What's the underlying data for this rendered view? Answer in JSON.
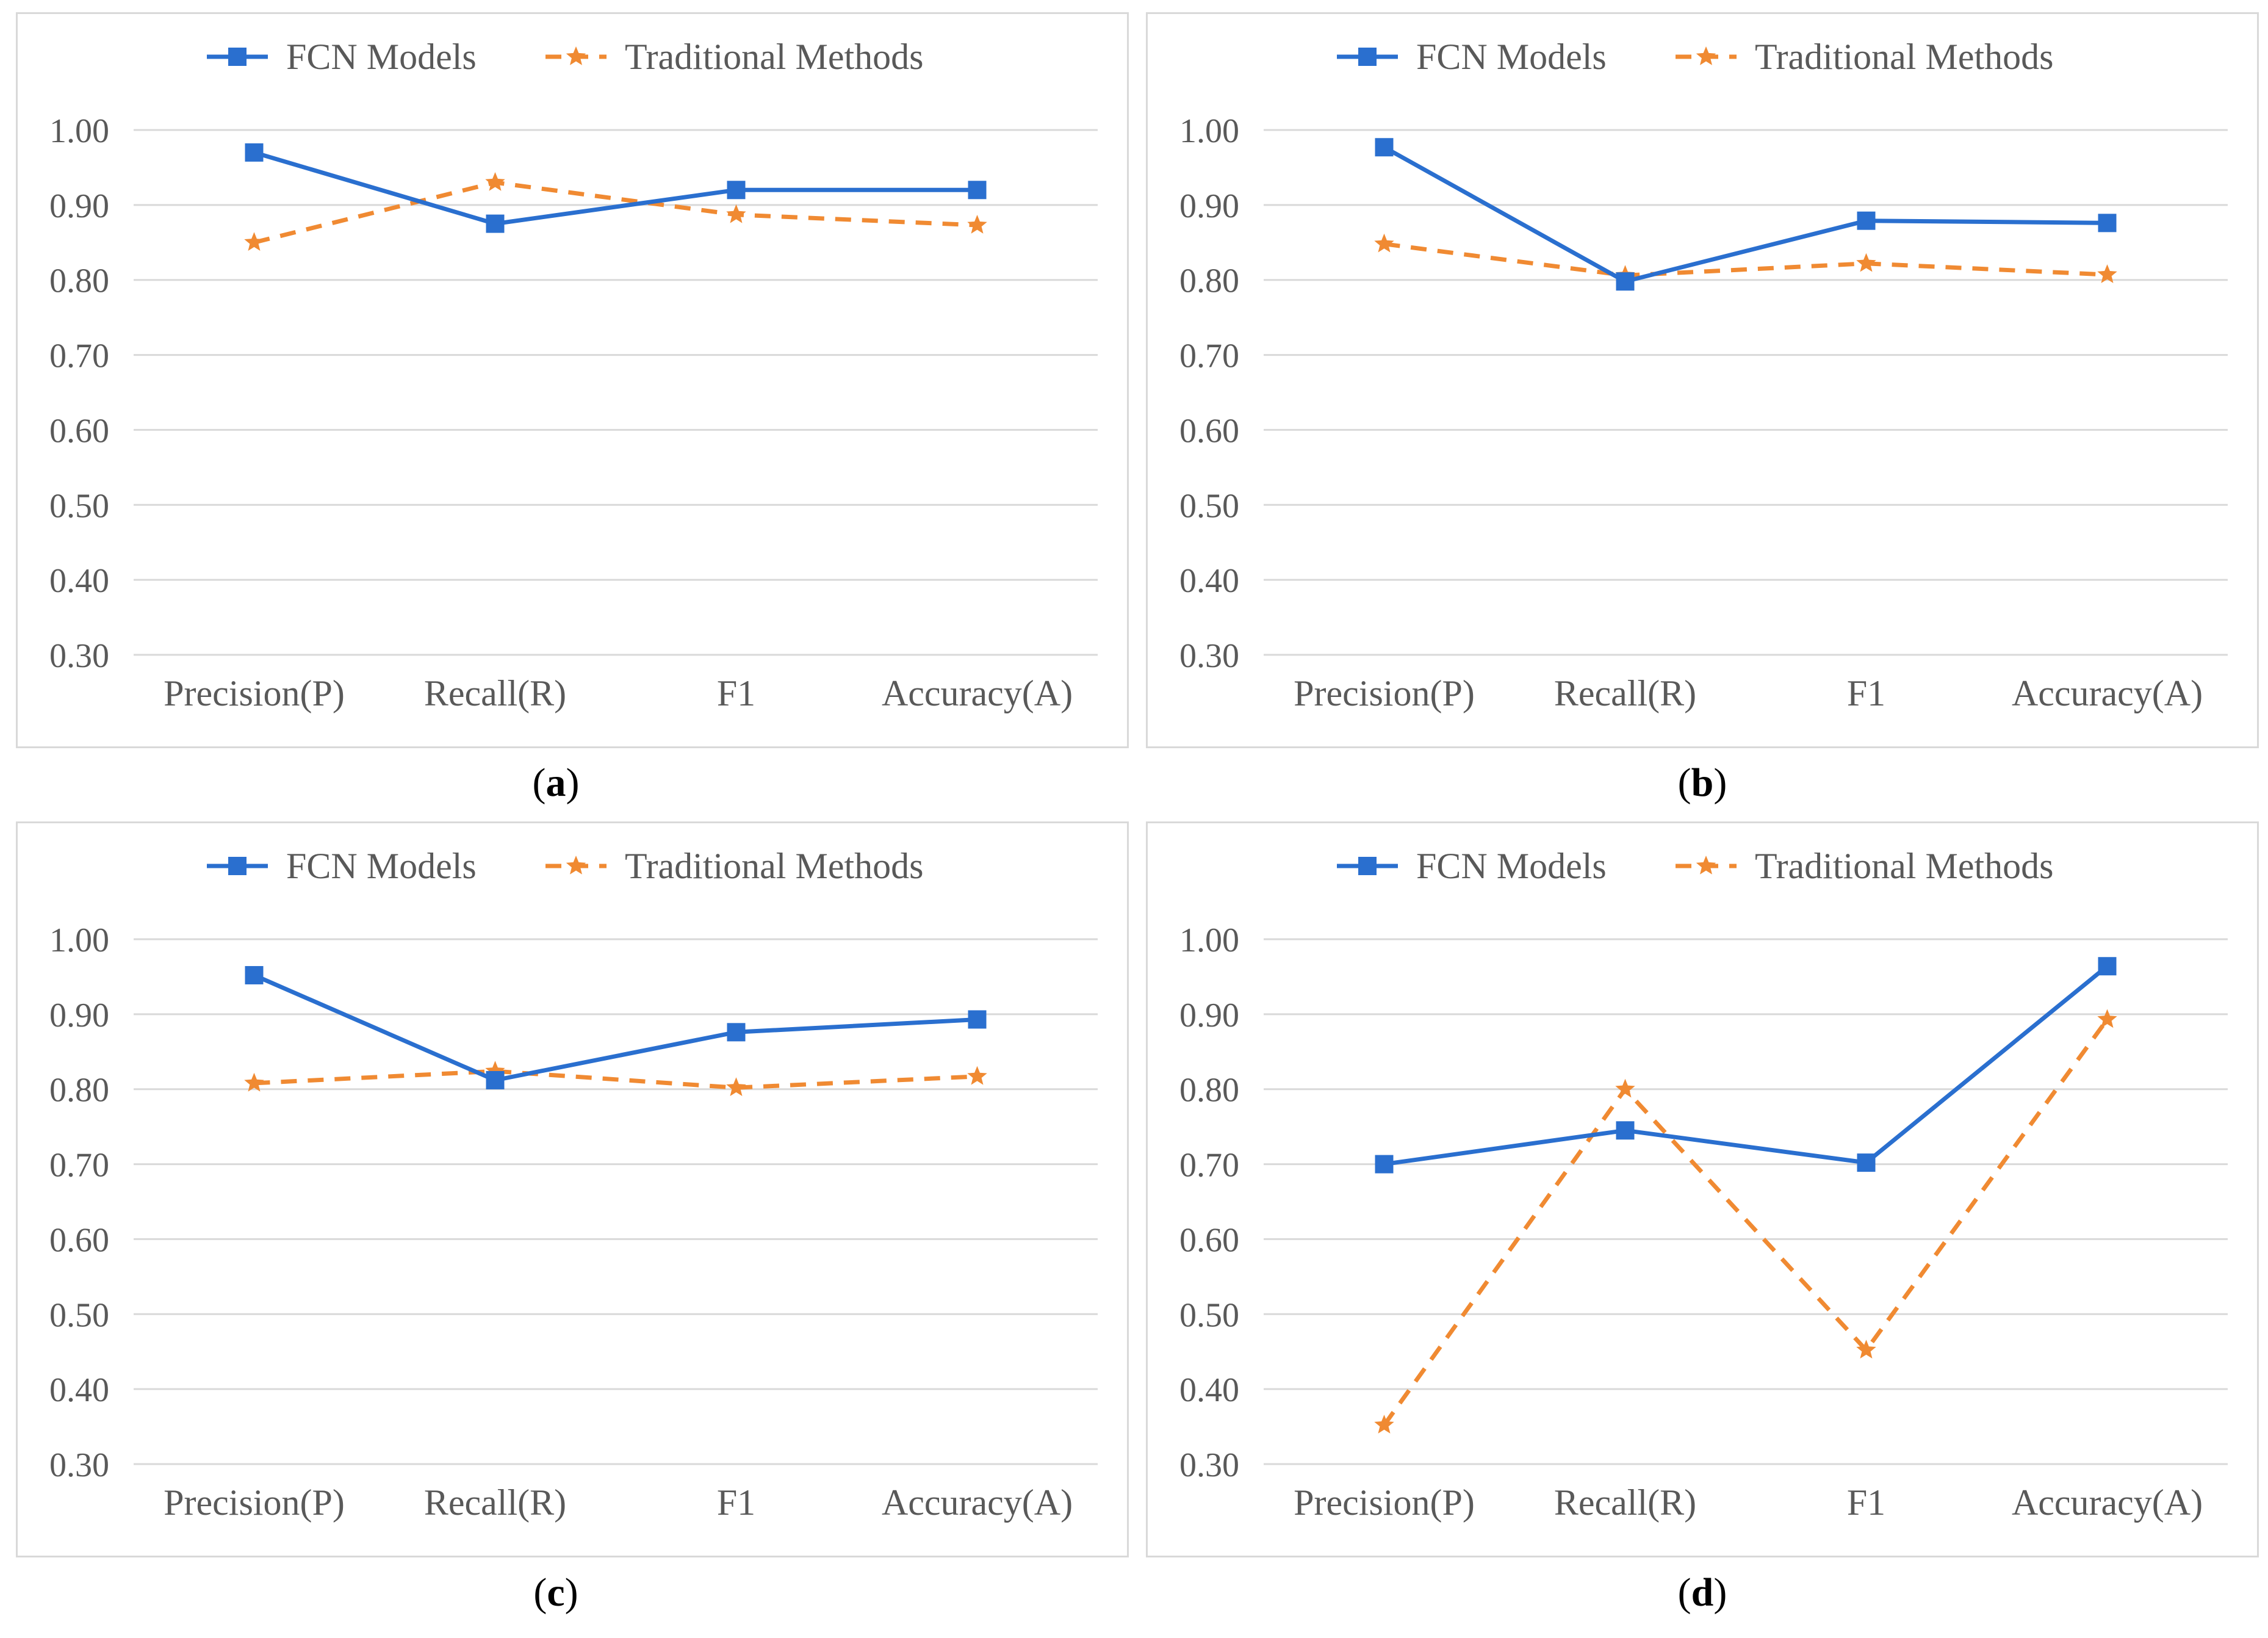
{
  "legend": {
    "fcn": "FCN Models",
    "traditional": "Traditional Methods"
  },
  "colors": {
    "fcn": "#2a6fcf",
    "traditional": "#f08a32",
    "grid": "#d9d9d9",
    "text": "#595959"
  },
  "chart_data": [
    {
      "type": "line",
      "panel": "a",
      "caption": "a",
      "categories": [
        "Precision(P)",
        "Recall(R)",
        "F1",
        "Accuracy(A)"
      ],
      "ylim": [
        0.3,
        1.0
      ],
      "yticks": [
        "1.00",
        "0.90",
        "0.80",
        "0.70",
        "0.60",
        "0.50",
        "0.40",
        "0.30"
      ],
      "series": [
        {
          "name": "FCN Models",
          "values": [
            0.97,
            0.875,
            0.92,
            0.92
          ]
        },
        {
          "name": "Traditional Methods",
          "values": [
            0.85,
            0.93,
            0.887,
            0.873
          ]
        }
      ]
    },
    {
      "type": "line",
      "panel": "b",
      "caption": "b",
      "categories": [
        "Precision(P)",
        "Recall(R)",
        "F1",
        "Accuracy(A)"
      ],
      "ylim": [
        0.3,
        1.0
      ],
      "yticks": [
        "1.00",
        "0.90",
        "0.80",
        "0.70",
        "0.60",
        "0.50",
        "0.40",
        "0.30"
      ],
      "series": [
        {
          "name": "FCN Models",
          "values": [
            0.977,
            0.798,
            0.879,
            0.876
          ]
        },
        {
          "name": "Traditional Methods",
          "values": [
            0.848,
            0.806,
            0.822,
            0.807
          ]
        }
      ]
    },
    {
      "type": "line",
      "panel": "c",
      "caption": "c",
      "categories": [
        "Precision(P)",
        "Recall(R)",
        "F1",
        "Accuracy(A)"
      ],
      "ylim": [
        0.3,
        1.0
      ],
      "yticks": [
        "1.00",
        "0.90",
        "0.80",
        "0.70",
        "0.60",
        "0.50",
        "0.40",
        "0.30"
      ],
      "series": [
        {
          "name": "FCN Models",
          "values": [
            0.952,
            0.812,
            0.876,
            0.893
          ]
        },
        {
          "name": "Traditional Methods",
          "values": [
            0.808,
            0.824,
            0.802,
            0.817
          ]
        }
      ]
    },
    {
      "type": "line",
      "panel": "d",
      "caption": "d",
      "categories": [
        "Precision(P)",
        "Recall(R)",
        "F1",
        "Accuracy(A)"
      ],
      "ylim": [
        0.3,
        1.0
      ],
      "yticks": [
        "1.00",
        "0.90",
        "0.80",
        "0.70",
        "0.60",
        "0.50",
        "0.40",
        "0.30"
      ],
      "series": [
        {
          "name": "FCN Models",
          "values": [
            0.7,
            0.745,
            0.702,
            0.964
          ]
        },
        {
          "name": "Traditional Methods",
          "values": [
            0.352,
            0.8,
            0.452,
            0.893
          ]
        }
      ]
    }
  ]
}
